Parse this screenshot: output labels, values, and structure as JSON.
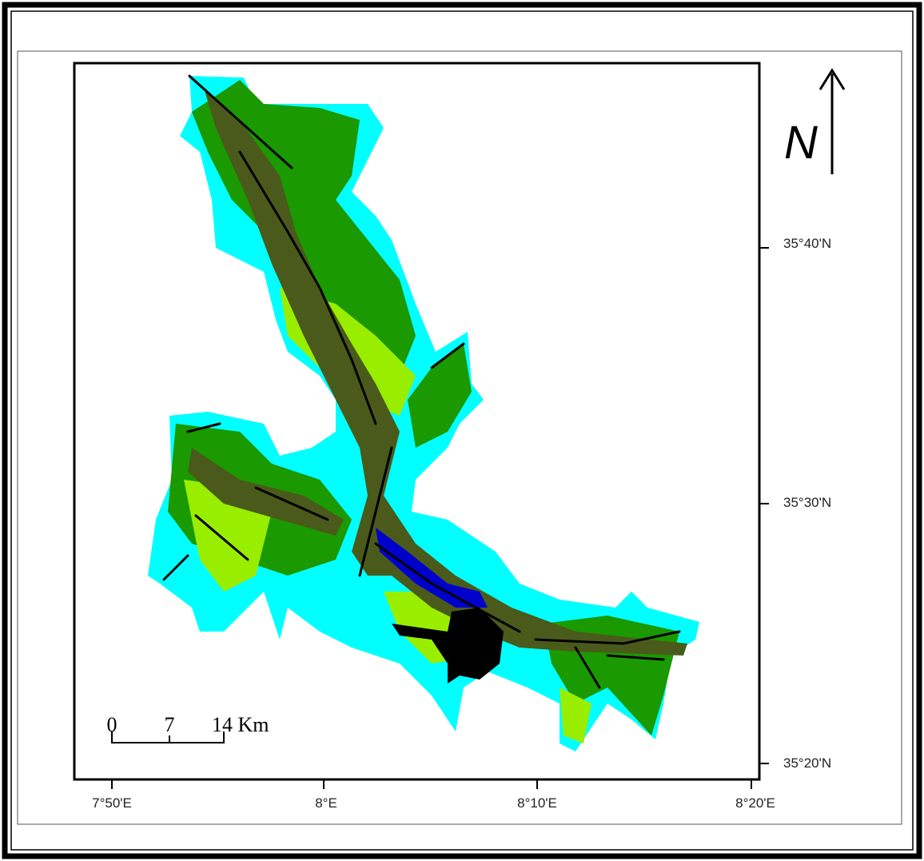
{
  "north_arrow": {
    "label": "N"
  },
  "latitude_labels": [
    "35°40'N",
    "35°30'N",
    "35°20'N"
  ],
  "longitude_labels": [
    "7°50'E",
    "8°E",
    "8°10'E",
    "8°20'E"
  ],
  "scale_bar": {
    "labels": [
      "0",
      "7",
      "14 Km"
    ]
  }
}
